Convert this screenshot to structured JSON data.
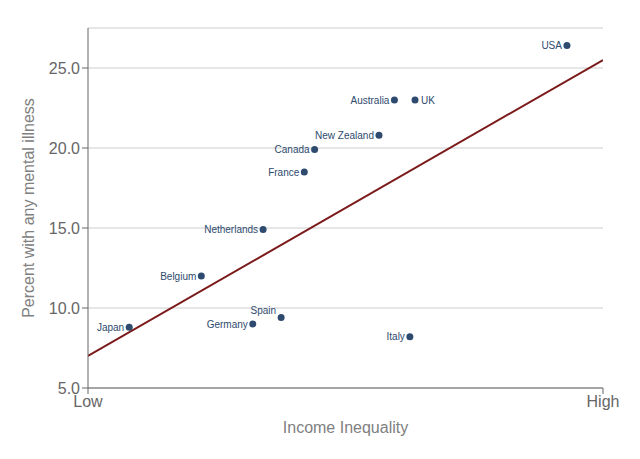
{
  "chart_data": {
    "type": "scatter",
    "x_label": "Income Inequality",
    "y_label": "Percent with any mental illness",
    "xlim": [
      0.0,
      1.0
    ],
    "ylim": [
      5.0,
      27.5
    ],
    "xticks": [
      {
        "value": 0.0,
        "label": "Low"
      },
      {
        "value": 1.0,
        "label": "High"
      }
    ],
    "yticks": [
      {
        "value": 5.0,
        "label": "5.0"
      },
      {
        "value": 10.0,
        "label": "10.0"
      },
      {
        "value": 15.0,
        "label": "15.0"
      },
      {
        "value": 20.0,
        "label": "20.0"
      },
      {
        "value": 25.0,
        "label": "25.0"
      }
    ],
    "grid": "y",
    "series": [
      {
        "type": "scatter",
        "color": "#2e4a6e",
        "x": [
          0.08,
          0.22,
          0.32,
          0.375,
          0.34,
          0.42,
          0.44,
          0.565,
          0.595,
          0.635,
          0.625,
          0.93
        ],
        "values": [
          8.8,
          12.0,
          9.0,
          9.4,
          14.9,
          18.5,
          19.9,
          20.8,
          23.0,
          23.0,
          8.2,
          26.4
        ],
        "labels": [
          "Japan",
          "Belgium",
          "Germany",
          "Spain",
          "Netherlands",
          "France",
          "Canada",
          "New Zealand",
          "Australia",
          "UK",
          "Italy",
          "USA"
        ]
      },
      {
        "type": "line",
        "color": "#7b1a1a",
        "x": [
          0.0,
          1.0
        ],
        "values": [
          7.0,
          25.5
        ]
      }
    ]
  }
}
